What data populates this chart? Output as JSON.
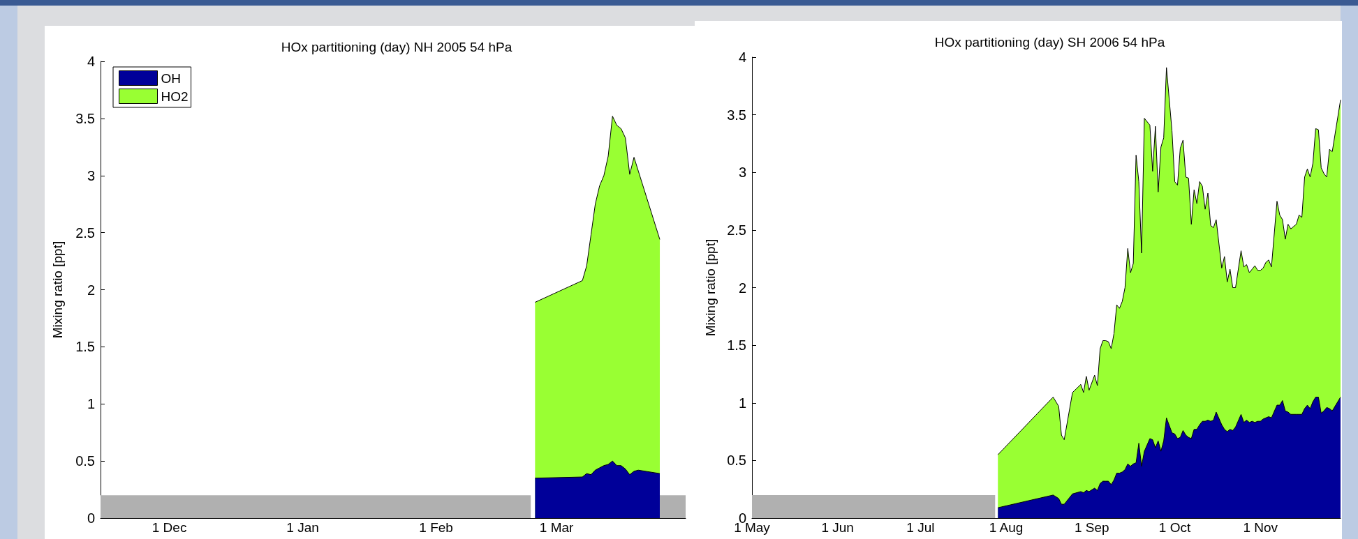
{
  "chart_data": [
    {
      "type": "area",
      "title": "HOx partitioning (day) NH 2005 54 hPa",
      "ylabel": "Mixing ratio [ppt]",
      "stacked": true,
      "legend": "top left",
      "xlim": [
        "2004-11-15",
        "2005-03-31"
      ],
      "ylim": [
        0,
        4
      ],
      "yticks": [
        0,
        0.5,
        1,
        1.5,
        2,
        2.5,
        3,
        3.5,
        4
      ],
      "xticks": [
        {
          "value": "2004-12-01",
          "label": "1 Dec"
        },
        {
          "value": "2005-01-01",
          "label": "1 Jan"
        },
        {
          "value": "2005-02-01",
          "label": "1 Feb"
        },
        {
          "value": "2005-03-01",
          "label": "1 Mar"
        }
      ],
      "x": [
        "2005-02-24",
        "2005-03-07",
        "2005-03-08",
        "2005-03-09",
        "2005-03-10",
        "2005-03-11",
        "2005-03-12",
        "2005-03-13",
        "2005-03-14",
        "2005-03-15",
        "2005-03-16",
        "2005-03-17",
        "2005-03-18",
        "2005-03-19",
        "2005-03-20",
        "2005-03-25"
      ],
      "series": [
        {
          "name": "OH",
          "color": "#000099",
          "values": [
            0.35,
            0.36,
            0.39,
            0.38,
            0.42,
            0.44,
            0.46,
            0.47,
            0.5,
            0.46,
            0.46,
            0.43,
            0.38,
            0.41,
            0.42,
            0.39
          ]
        },
        {
          "name": "HO2",
          "color": "#99ff33",
          "values": [
            1.54,
            1.72,
            1.82,
            2.1,
            2.33,
            2.47,
            2.54,
            2.7,
            3.02,
            2.98,
            2.95,
            2.9,
            2.63,
            2.75,
            2.62,
            2.05
          ]
        }
      ],
      "bands": [
        {
          "axis": "x",
          "from": "2004-11-15",
          "to": "2005-02-23",
          "color": "#b0b0b0"
        },
        {
          "axis": "x",
          "from": "2005-03-25",
          "to": "2005-03-31",
          "color": "#b0b0b0"
        }
      ]
    },
    {
      "type": "area",
      "title": "HOx partitioning (day) SH 2006 54 hPa",
      "ylabel": "Mixing ratio [ppt]",
      "stacked": true,
      "xlim": [
        "2006-05-01",
        "2006-11-30"
      ],
      "ylim": [
        0,
        4
      ],
      "yticks": [
        0,
        0.5,
        1,
        1.5,
        2,
        2.5,
        3,
        3.5,
        4
      ],
      "xticks": [
        {
          "value": "2006-05-01",
          "label": "1 May"
        },
        {
          "value": "2006-06-01",
          "label": "1 Jun"
        },
        {
          "value": "2006-07-01",
          "label": "1 Jul"
        },
        {
          "value": "2006-08-01",
          "label": "1 Aug"
        },
        {
          "value": "2006-09-01",
          "label": "1 Sep"
        },
        {
          "value": "2006-10-01",
          "label": "1 Oct"
        },
        {
          "value": "2006-11-01",
          "label": "1 Nov"
        }
      ],
      "x": [
        "2006-07-29",
        "2006-08-18",
        "2006-08-20",
        "2006-08-21",
        "2006-08-22",
        "2006-08-25",
        "2006-08-28",
        "2006-08-29",
        "2006-08-30",
        "2006-08-31",
        "2006-09-02",
        "2006-09-03",
        "2006-09-04",
        "2006-09-05",
        "2006-09-06",
        "2006-09-07",
        "2006-09-08",
        "2006-09-09",
        "2006-09-10",
        "2006-09-11",
        "2006-09-12",
        "2006-09-13",
        "2006-09-14",
        "2006-09-15",
        "2006-09-16",
        "2006-09-17",
        "2006-09-18",
        "2006-09-19",
        "2006-09-20",
        "2006-09-22",
        "2006-09-23",
        "2006-09-24",
        "2006-09-25",
        "2006-09-26",
        "2006-09-27",
        "2006-09-28",
        "2006-09-30",
        "2006-10-01",
        "2006-10-02",
        "2006-10-03",
        "2006-10-04",
        "2006-10-05",
        "2006-10-06",
        "2006-10-07",
        "2006-10-08",
        "2006-10-09",
        "2006-10-10",
        "2006-10-11",
        "2006-10-12",
        "2006-10-13",
        "2006-10-14",
        "2006-10-15",
        "2006-10-16",
        "2006-10-18",
        "2006-10-19",
        "2006-10-20",
        "2006-10-21",
        "2006-10-22",
        "2006-10-23",
        "2006-10-25",
        "2006-10-26",
        "2006-10-27",
        "2006-10-28",
        "2006-10-29",
        "2006-10-30",
        "2006-10-31",
        "2006-11-01",
        "2006-11-02",
        "2006-11-03",
        "2006-11-04",
        "2006-11-05",
        "2006-11-07",
        "2006-11-08",
        "2006-11-09",
        "2006-11-10",
        "2006-11-11",
        "2006-11-12",
        "2006-11-14",
        "2006-11-15",
        "2006-11-16",
        "2006-11-17",
        "2006-11-18",
        "2006-11-19",
        "2006-11-20",
        "2006-11-21",
        "2006-11-22",
        "2006-11-23",
        "2006-11-24",
        "2006-11-25",
        "2006-11-26",
        "2006-11-27",
        "2006-11-30"
      ],
      "series": [
        {
          "color": "#000099",
          "values": [
            0.09,
            0.2,
            0.17,
            0.12,
            0.12,
            0.21,
            0.23,
            0.22,
            0.24,
            0.23,
            0.26,
            0.24,
            0.3,
            0.32,
            0.32,
            0.32,
            0.29,
            0.33,
            0.39,
            0.39,
            0.4,
            0.42,
            0.47,
            0.45,
            0.47,
            0.48,
            0.65,
            0.45,
            0.58,
            0.69,
            0.68,
            0.61,
            0.67,
            0.58,
            0.67,
            0.87,
            0.74,
            0.73,
            0.69,
            0.7,
            0.76,
            0.72,
            0.7,
            0.69,
            0.77,
            0.77,
            0.81,
            0.84,
            0.84,
            0.85,
            0.84,
            0.85,
            0.92,
            0.81,
            0.77,
            0.75,
            0.77,
            0.76,
            0.79,
            0.9,
            0.83,
            0.85,
            0.83,
            0.84,
            0.83,
            0.84,
            0.84,
            0.86,
            0.87,
            0.88,
            0.87,
            0.98,
            0.98,
            1.02,
            0.93,
            0.92,
            0.9,
            0.9,
            0.9,
            0.9,
            0.95,
            0.98,
            0.95,
            1.01,
            1.05,
            1.05,
            0.91,
            0.93,
            0.96,
            0.95,
            0.93,
            1.05
          ]
        },
        {
          "color": "#99ff33",
          "values": [
            0.46,
            0.85,
            0.8,
            0.6,
            0.56,
            0.88,
            0.93,
            0.87,
            0.99,
            0.88,
            0.98,
            0.91,
            1.17,
            1.22,
            1.22,
            1.21,
            1.18,
            1.27,
            1.46,
            1.43,
            1.48,
            1.58,
            1.87,
            1.68,
            1.74,
            2.67,
            2.27,
            1.85,
            2.89,
            2.72,
            2.33,
            2.79,
            2.16,
            2.64,
            2.63,
            3.04,
            2.62,
            2.19,
            2.2,
            2.51,
            2.52,
            2.24,
            2.25,
            1.86,
            2.08,
            1.96,
            2.11,
            2.04,
            1.84,
            1.97,
            1.7,
            1.67,
            1.67,
            1.36,
            1.5,
            1.3,
            1.39,
            1.24,
            1.21,
            1.42,
            1.35,
            1.35,
            1.3,
            1.32,
            1.36,
            1.31,
            1.31,
            1.31,
            1.35,
            1.36,
            1.31,
            1.77,
            1.65,
            1.57,
            1.49,
            1.63,
            1.61,
            1.65,
            1.73,
            1.71,
            2.01,
            2.05,
            2.01,
            2.07,
            2.33,
            2.32,
            2.13,
            2.06,
            2.0,
            2.25,
            2.25,
            2.58
          ]
        }
      ],
      "bands": [
        {
          "axis": "x",
          "from": "2006-05-01",
          "to": "2006-07-28",
          "color": "#b0b0b0"
        }
      ]
    }
  ]
}
